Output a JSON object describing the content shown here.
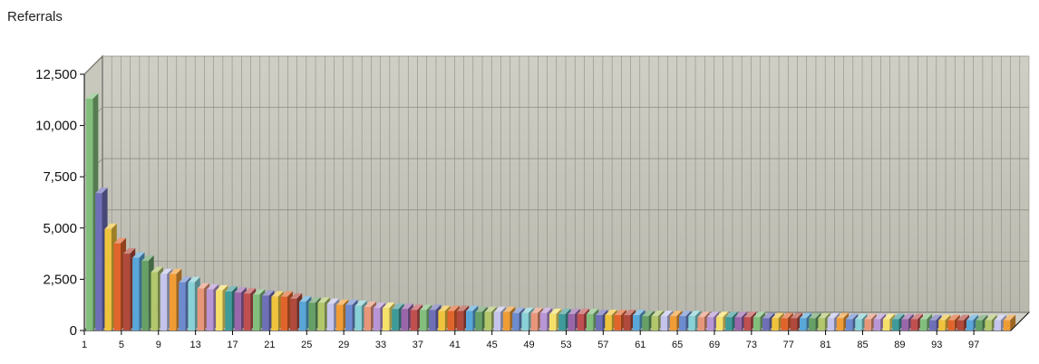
{
  "chart_data": {
    "type": "bar",
    "title": "Referrals",
    "xlabel": "",
    "ylabel": "",
    "ylim": [
      0,
      12500
    ],
    "yticks": [
      "0",
      "2,500",
      "5,000",
      "7,500",
      "10,000",
      "12,500"
    ],
    "xticks": [
      1,
      5,
      9,
      13,
      17,
      21,
      25,
      29,
      33,
      37,
      41,
      45,
      49,
      53,
      57,
      61,
      65,
      69,
      73,
      77,
      81,
      85,
      89,
      93,
      97
    ],
    "grid": true,
    "style": "3d",
    "categories": [
      1,
      2,
      3,
      4,
      5,
      6,
      7,
      8,
      9,
      10,
      11,
      12,
      13,
      14,
      15,
      16,
      17,
      18,
      19,
      20,
      21,
      22,
      23,
      24,
      25,
      26,
      27,
      28,
      29,
      30,
      31,
      32,
      33,
      34,
      35,
      36,
      37,
      38,
      39,
      40,
      41,
      42,
      43,
      44,
      45,
      46,
      47,
      48,
      49,
      50,
      51,
      52,
      53,
      54,
      55,
      56,
      57,
      58,
      59,
      60,
      61,
      62,
      63,
      64,
      65,
      66,
      67,
      68,
      69,
      70,
      71,
      72,
      73,
      74,
      75,
      76,
      77,
      78,
      79,
      80,
      81,
      82,
      83,
      84,
      85,
      86,
      87,
      88,
      89,
      90,
      91,
      92,
      93,
      94,
      95,
      96,
      97,
      98,
      99,
      100
    ],
    "values": [
      11300,
      6700,
      4950,
      4250,
      3750,
      3550,
      3400,
      2850,
      2750,
      2750,
      2350,
      2350,
      2050,
      2000,
      1950,
      1900,
      1850,
      1800,
      1750,
      1700,
      1650,
      1650,
      1550,
      1400,
      1350,
      1350,
      1300,
      1250,
      1250,
      1200,
      1150,
      1100,
      1100,
      1050,
      1050,
      1000,
      1000,
      1000,
      950,
      950,
      950,
      950,
      900,
      900,
      900,
      900,
      850,
      850,
      850,
      850,
      800,
      800,
      800,
      800,
      800,
      750,
      750,
      750,
      750,
      750,
      700,
      700,
      700,
      700,
      700,
      700,
      650,
      650,
      650,
      650,
      650,
      650,
      650,
      600,
      600,
      600,
      600,
      600,
      600,
      600,
      600,
      600,
      550,
      550,
      550,
      550,
      550,
      550,
      550,
      550,
      550,
      500,
      500,
      500,
      500,
      500,
      500,
      500,
      500,
      500
    ],
    "palette": [
      "#82bf7d",
      "#6f6fb8",
      "#f0c33c",
      "#e0642c",
      "#b04a3c",
      "#59a6d9",
      "#67a067",
      "#b2c66b",
      "#c4c4ec",
      "#f09c35",
      "#6d8ccf",
      "#88d1d6",
      "#e8967a",
      "#b896d6",
      "#f5e06a",
      "#3f9a9a",
      "#9966aa",
      "#c05050"
    ],
    "colors": {
      "wall": "#c2c2b6",
      "floor": "#d0d0c8",
      "gridline": "#8e8e84",
      "axis": "#000000"
    }
  }
}
